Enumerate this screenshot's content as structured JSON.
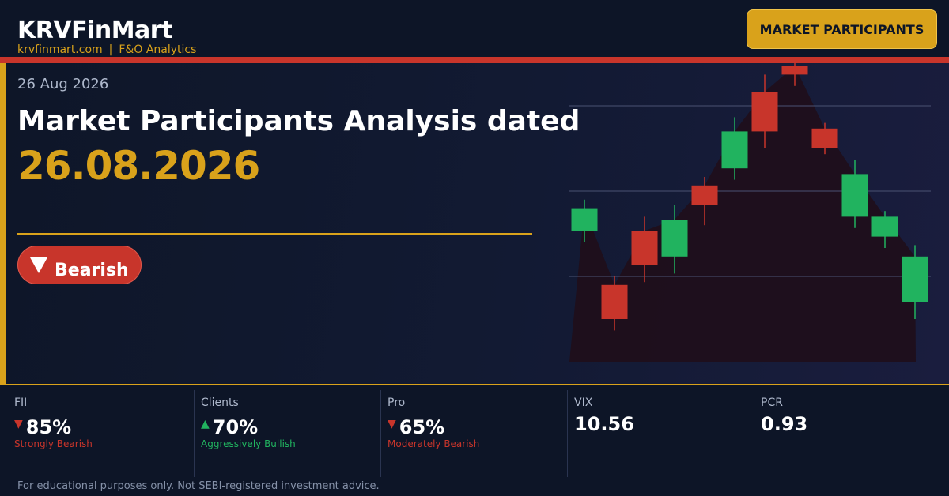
{
  "header": {
    "brand": "KRVFinMart",
    "site": "krvfinmart.com",
    "separator": "|",
    "tagline": "F&O Analytics",
    "button_label": "MARKET PARTICIPANTS"
  },
  "hero": {
    "date": "26 Aug 2026",
    "title": "Market Participants Analysis dated",
    "big_date": "26.08.2026",
    "sentiment": {
      "label": "Bearish",
      "icon": "down-triangle-icon"
    }
  },
  "stats": [
    {
      "label": "FII",
      "value": "85%",
      "trend": "down",
      "description": "Strongly Bearish",
      "arrow": "▼"
    },
    {
      "label": "Clients",
      "value": "70%",
      "trend": "up",
      "description": "Aggressively Bullish",
      "arrow": "▲"
    },
    {
      "label": "Pro",
      "value": "65%",
      "trend": "down",
      "description": "Moderately Bearish",
      "arrow": "▼"
    },
    {
      "label": "VIX",
      "value": "10.56",
      "trend": "none",
      "description": "",
      "arrow": ""
    },
    {
      "label": "PCR",
      "value": "0.93",
      "trend": "none",
      "description": "",
      "arrow": ""
    }
  ],
  "disclaimer": "For educational purposes only. Not SEBI-registered investment advice.",
  "colors": {
    "accent": "#d9a21b",
    "bearish": "#c8352b",
    "bullish": "#21b35f",
    "background": "#0d1527"
  },
  "chart_data": {
    "type": "candlestick",
    "title": "",
    "xlabel": "",
    "ylabel": "",
    "grid": true,
    "ylim": [
      0,
      100
    ],
    "candles": [
      {
        "open": 46,
        "close": 54,
        "high": 57,
        "low": 42
      },
      {
        "open": 27,
        "close": 15,
        "high": 30,
        "low": 11
      },
      {
        "open": 46,
        "close": 34,
        "high": 51,
        "low": 28
      },
      {
        "open": 37,
        "close": 50,
        "high": 55,
        "low": 31
      },
      {
        "open": 62,
        "close": 55,
        "high": 65,
        "low": 48
      },
      {
        "open": 68,
        "close": 81,
        "high": 86,
        "low": 64
      },
      {
        "open": 95,
        "close": 81,
        "high": 101,
        "low": 75
      },
      {
        "open": 104,
        "close": 101,
        "high": 106,
        "low": 97
      },
      {
        "open": 82,
        "close": 75,
        "high": 84,
        "low": 73
      },
      {
        "open": 51,
        "close": 66,
        "high": 71,
        "low": 47
      },
      {
        "open": 44,
        "close": 51,
        "high": 53,
        "low": 40
      },
      {
        "open": 21,
        "close": 37,
        "high": 41,
        "low": 15
      }
    ]
  }
}
